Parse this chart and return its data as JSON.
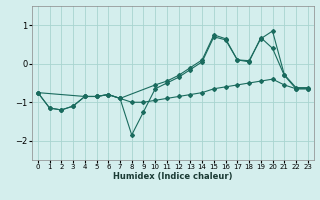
{
  "xlabel": "Humidex (Indice chaleur)",
  "background_color": "#d4eeed",
  "grid_color": "#a8d4d0",
  "line_color": "#1a6b5e",
  "xlim": [
    -0.5,
    23.5
  ],
  "ylim": [
    -2.5,
    1.5
  ],
  "yticks": [
    -2,
    -1,
    0,
    1
  ],
  "xticks": [
    0,
    1,
    2,
    3,
    4,
    5,
    6,
    7,
    8,
    9,
    10,
    11,
    12,
    13,
    14,
    15,
    16,
    17,
    18,
    19,
    20,
    21,
    22,
    23
  ],
  "series": [
    {
      "x": [
        0,
        1,
        2,
        3,
        4,
        5,
        6,
        7,
        8,
        9,
        10,
        11,
        12,
        13,
        14,
        15,
        16,
        17,
        18,
        19,
        20,
        21,
        22,
        23
      ],
      "y": [
        -0.75,
        -1.15,
        -1.2,
        -1.1,
        -0.85,
        -0.85,
        -0.8,
        -0.9,
        -1.0,
        -1.0,
        -0.95,
        -0.9,
        -0.85,
        -0.8,
        -0.75,
        -0.65,
        -0.6,
        -0.55,
        -0.5,
        -0.45,
        -0.4,
        -0.55,
        -0.65,
        -0.65
      ]
    },
    {
      "x": [
        0,
        1,
        2,
        3,
        4,
        5,
        6,
        7,
        8,
        9,
        10,
        11,
        12,
        13,
        14,
        15,
        16,
        17,
        18,
        19,
        20,
        21,
        22,
        23
      ],
      "y": [
        -0.75,
        -1.15,
        -1.2,
        -1.1,
        -0.85,
        -0.85,
        -0.8,
        -0.9,
        -1.85,
        -1.25,
        -0.65,
        -0.5,
        -0.35,
        -0.15,
        0.05,
        0.7,
        0.62,
        0.1,
        0.05,
        0.68,
        0.4,
        -0.3,
        -0.65,
        -0.65
      ]
    },
    {
      "x": [
        0,
        4,
        5,
        6,
        7,
        10,
        11,
        12,
        13,
        14,
        15,
        16,
        17,
        18,
        19,
        20,
        21,
        22,
        23
      ],
      "y": [
        -0.75,
        -0.85,
        -0.85,
        -0.8,
        -0.9,
        -0.55,
        -0.45,
        -0.3,
        -0.1,
        0.1,
        0.75,
        0.65,
        0.1,
        0.08,
        0.65,
        0.85,
        -0.28,
        -0.62,
        -0.62
      ]
    }
  ]
}
